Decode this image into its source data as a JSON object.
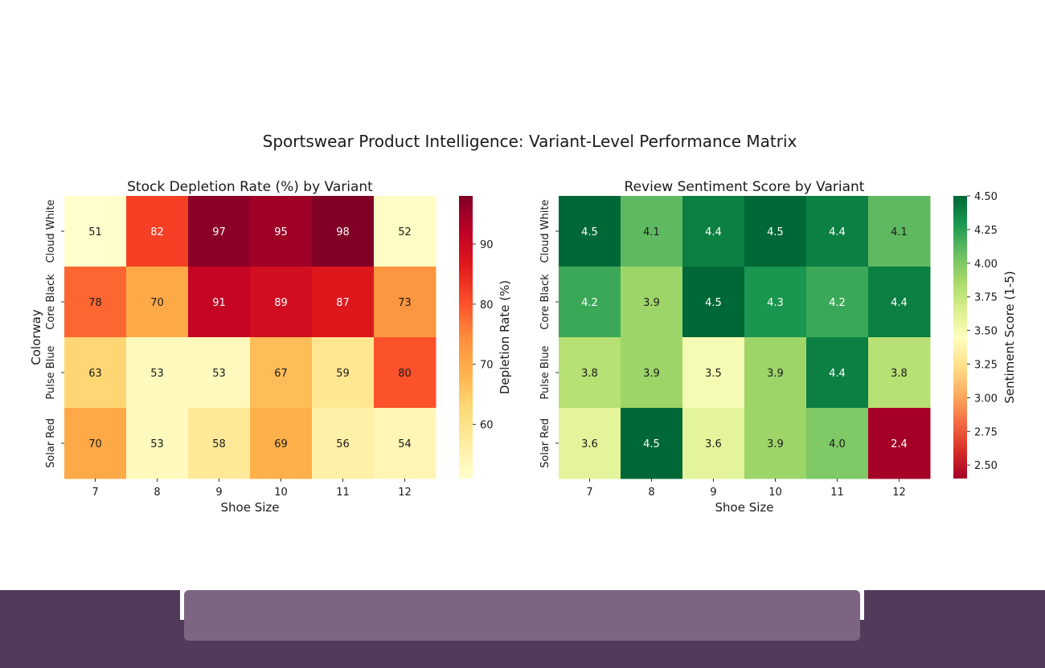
{
  "figure": {
    "title": "Sportswear Product Intelligence: Variant-Level Performance Matrix"
  },
  "chart_data": [
    {
      "type": "heatmap",
      "title": "Stock Depletion Rate (%) by Variant",
      "xlabel": "Shoe Size",
      "ylabel": "Colorway",
      "x": [
        "7",
        "8",
        "9",
        "10",
        "11",
        "12"
      ],
      "y": [
        "Cloud White",
        "Core Black",
        "Pulse Blue",
        "Solar Red"
      ],
      "values": [
        [
          51,
          82,
          97,
          95,
          98,
          52
        ],
        [
          78,
          70,
          91,
          89,
          87,
          73
        ],
        [
          63,
          53,
          53,
          67,
          59,
          80
        ],
        [
          70,
          53,
          58,
          69,
          56,
          54
        ]
      ],
      "value_labels": [
        [
          "51",
          "82",
          "97",
          "95",
          "98",
          "52"
        ],
        [
          "78",
          "70",
          "91",
          "89",
          "87",
          "73"
        ],
        [
          "63",
          "53",
          "53",
          "67",
          "59",
          "80"
        ],
        [
          "70",
          "53",
          "58",
          "69",
          "56",
          "54"
        ]
      ],
      "colormap": "YlOrRd",
      "colorbar": {
        "label": "Depletion Rate (%)",
        "range": [
          51,
          98
        ],
        "ticks": [
          60,
          70,
          80,
          90
        ],
        "tick_labels": [
          "60",
          "70",
          "80",
          "90"
        ]
      }
    },
    {
      "type": "heatmap",
      "title": "Review Sentiment Score by Variant",
      "xlabel": "Shoe Size",
      "ylabel": "",
      "x": [
        "7",
        "8",
        "9",
        "10",
        "11",
        "12"
      ],
      "y": [
        "Cloud White",
        "Core Black",
        "Pulse Blue",
        "Solar Red"
      ],
      "values": [
        [
          4.5,
          4.1,
          4.4,
          4.5,
          4.4,
          4.1
        ],
        [
          4.2,
          3.9,
          4.5,
          4.3,
          4.2,
          4.4
        ],
        [
          3.8,
          3.9,
          3.5,
          3.9,
          4.4,
          3.8
        ],
        [
          3.6,
          4.5,
          3.6,
          3.9,
          4.0,
          2.4
        ]
      ],
      "value_labels": [
        [
          "4.5",
          "4.1",
          "4.4",
          "4.5",
          "4.4",
          "4.1"
        ],
        [
          "4.2",
          "3.9",
          "4.5",
          "4.3",
          "4.2",
          "4.4"
        ],
        [
          "3.8",
          "3.9",
          "3.5",
          "3.9",
          "4.4",
          "3.8"
        ],
        [
          "3.6",
          "4.5",
          "3.6",
          "3.9",
          "4.0",
          "2.4"
        ]
      ],
      "colormap": "RdYlGn",
      "colorbar": {
        "label": "Sentiment Score (1-5)",
        "range": [
          2.4,
          4.5
        ],
        "ticks": [
          2.5,
          2.75,
          3.0,
          3.25,
          3.5,
          3.75,
          4.0,
          4.25,
          4.5
        ],
        "tick_labels": [
          "2.50",
          "2.75",
          "3.00",
          "3.25",
          "3.50",
          "3.75",
          "4.00",
          "4.25",
          "4.50"
        ]
      }
    }
  ]
}
